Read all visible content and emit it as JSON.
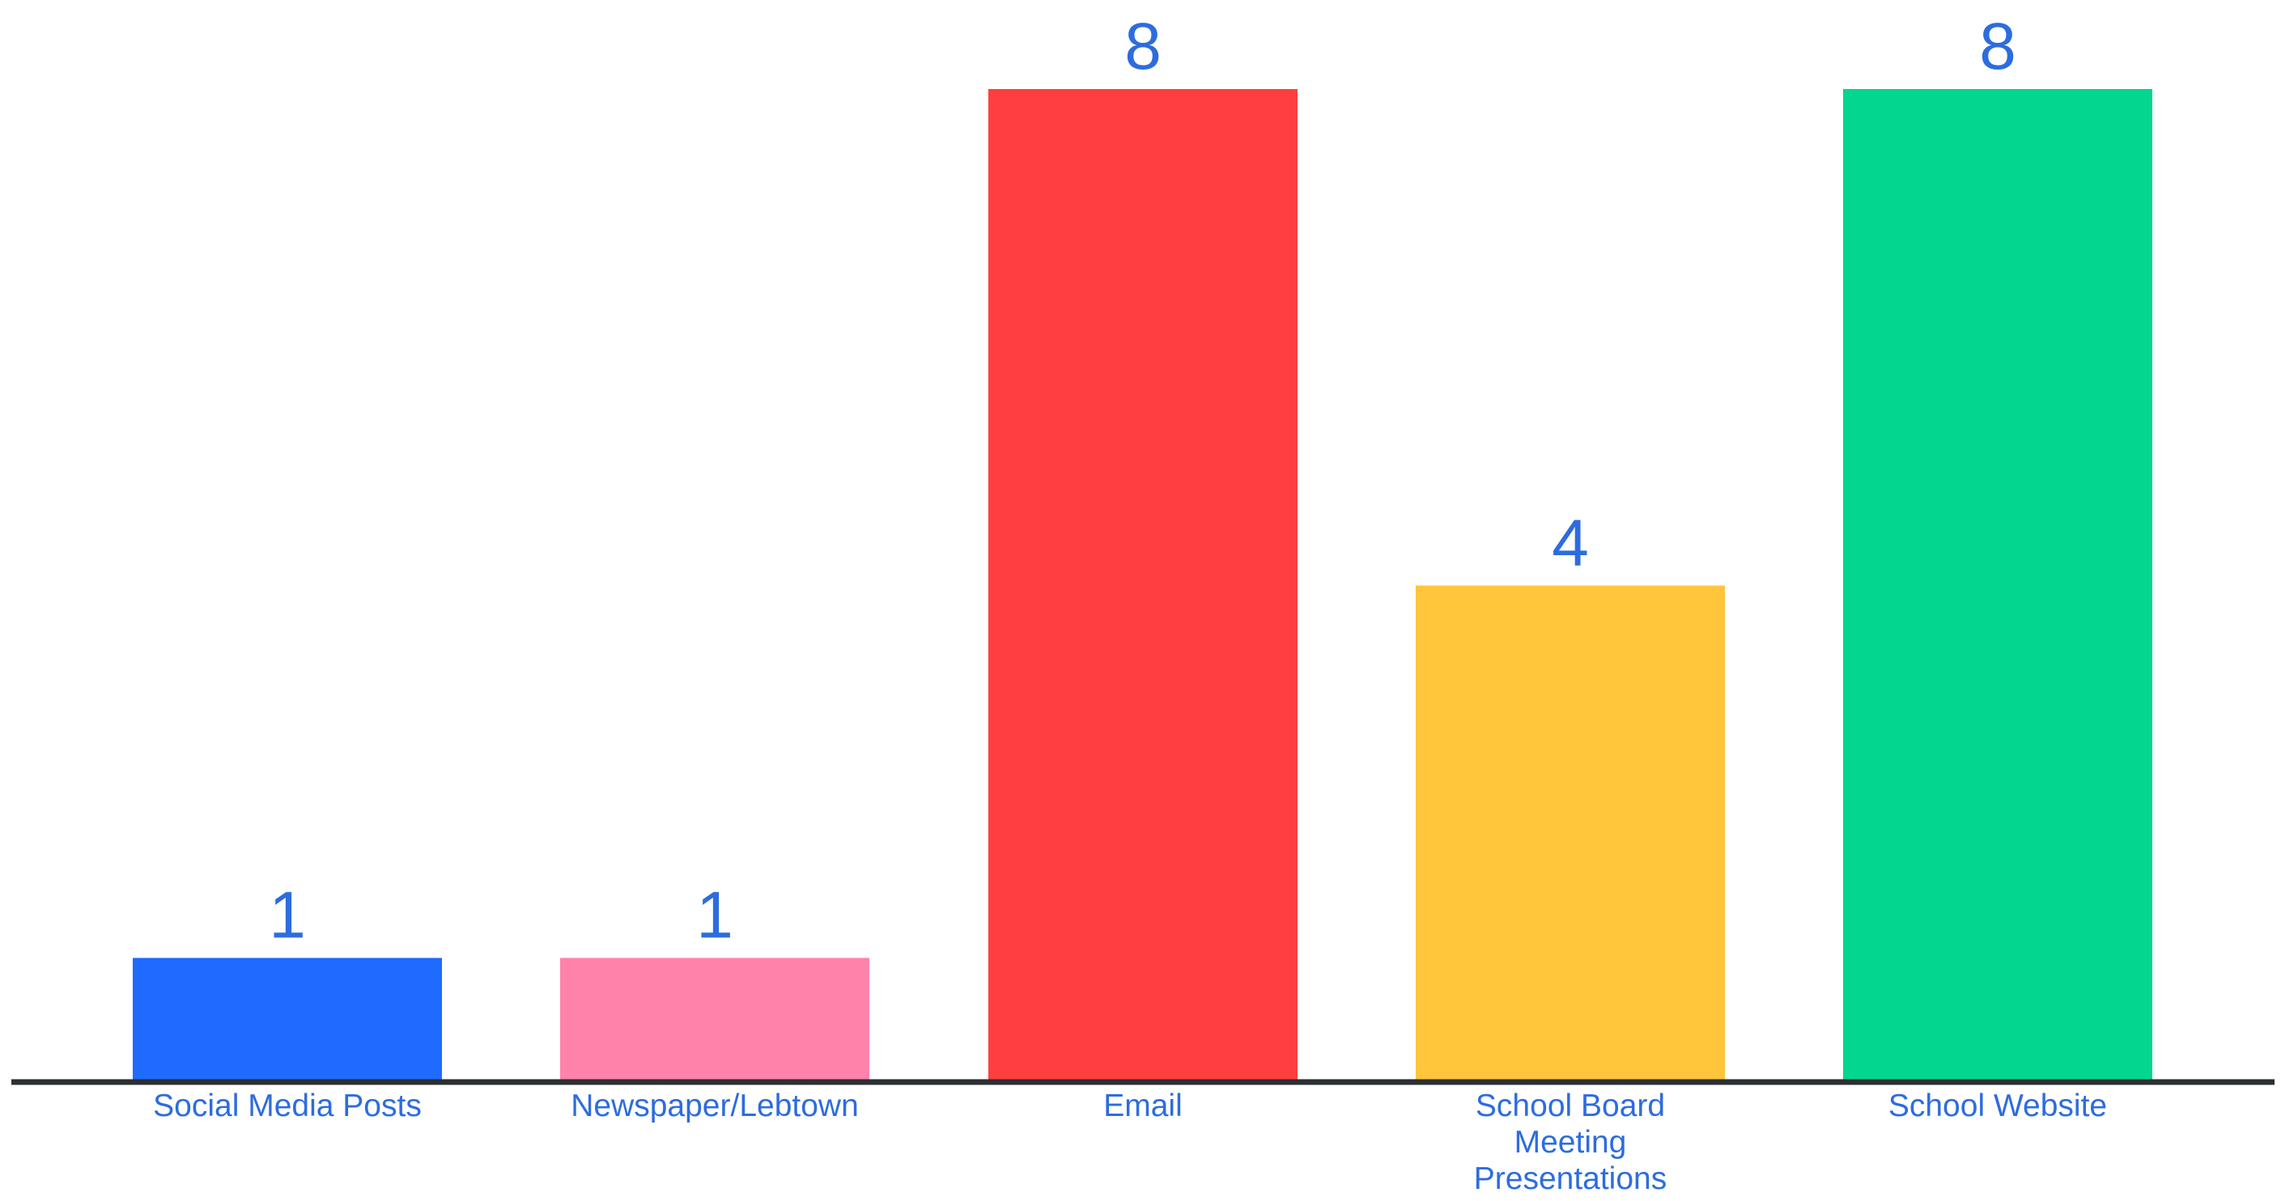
{
  "chart_data": {
    "type": "bar",
    "categories": [
      "Social Media Posts",
      "Newspaper/Lebtown",
      "Email",
      "School Board Meeting Presentations",
      "School Website"
    ],
    "category_label_lines": [
      [
        "Social Media Posts"
      ],
      [
        "Newspaper/Lebtown"
      ],
      [
        "Email"
      ],
      [
        "School Board",
        "Meeting",
        "Presentations"
      ],
      [
        "School Website"
      ]
    ],
    "values": [
      1,
      1,
      8,
      4,
      8
    ],
    "data_labels": [
      "1",
      "1",
      "8",
      "4",
      "8"
    ],
    "bar_colors": [
      "#1f6bff",
      "#ff82ab",
      "#ff3f3f",
      "#ffc53b",
      "#03d68f"
    ],
    "label_color": "#2d6cdf",
    "axis_color": "#2b2f33",
    "title": "",
    "xlabel": "",
    "ylabel": "",
    "ylim": [
      0,
      8
    ],
    "grid": false,
    "legend": "none"
  }
}
